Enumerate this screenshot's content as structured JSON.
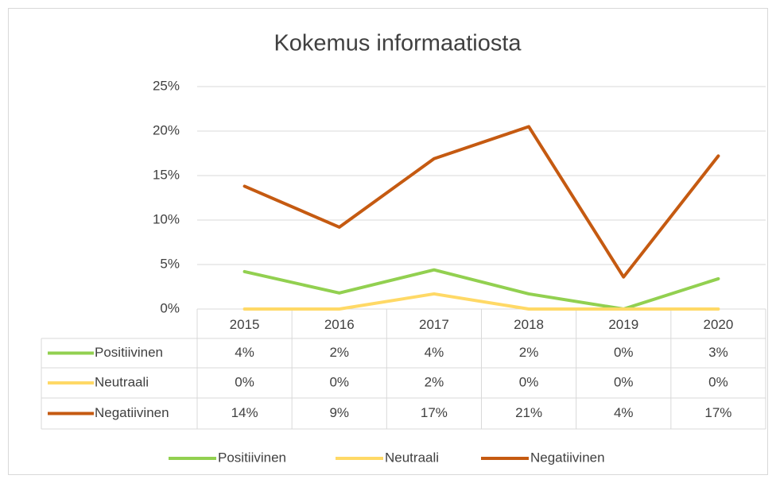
{
  "chart_data": {
    "type": "line",
    "title": "Kokemus informaatiosta",
    "categories": [
      "2015",
      "2016",
      "2017",
      "2018",
      "2019",
      "2020"
    ],
    "series": [
      {
        "name": "Positiivinen",
        "color": "#92d050",
        "values": [
          4.2,
          1.8,
          4.4,
          1.7,
          0,
          3.4
        ],
        "value_labels": [
          "4%",
          "2%",
          "4%",
          "2%",
          "0%",
          "3%"
        ]
      },
      {
        "name": "Neutraali",
        "color": "#ffd966",
        "values": [
          0,
          0,
          1.7,
          0,
          0,
          0
        ],
        "value_labels": [
          "0%",
          "0%",
          "2%",
          "0%",
          "0%",
          "0%"
        ]
      },
      {
        "name": "Negatiivinen",
        "color": "#c55a11",
        "values": [
          13.8,
          9.2,
          16.9,
          20.5,
          3.6,
          17.2
        ],
        "value_labels": [
          "14%",
          "9%",
          "17%",
          "21%",
          "4%",
          "17%"
        ]
      }
    ],
    "ylim": [
      0,
      25
    ],
    "yticks": [
      {
        "value": 0,
        "label": "0%"
      },
      {
        "value": 5,
        "label": "5%"
      },
      {
        "value": 10,
        "label": "10%"
      },
      {
        "value": 15,
        "label": "15%"
      },
      {
        "value": 20,
        "label": "20%"
      },
      {
        "value": 25,
        "label": "25%"
      }
    ],
    "grid": true,
    "legend": "bottom"
  }
}
